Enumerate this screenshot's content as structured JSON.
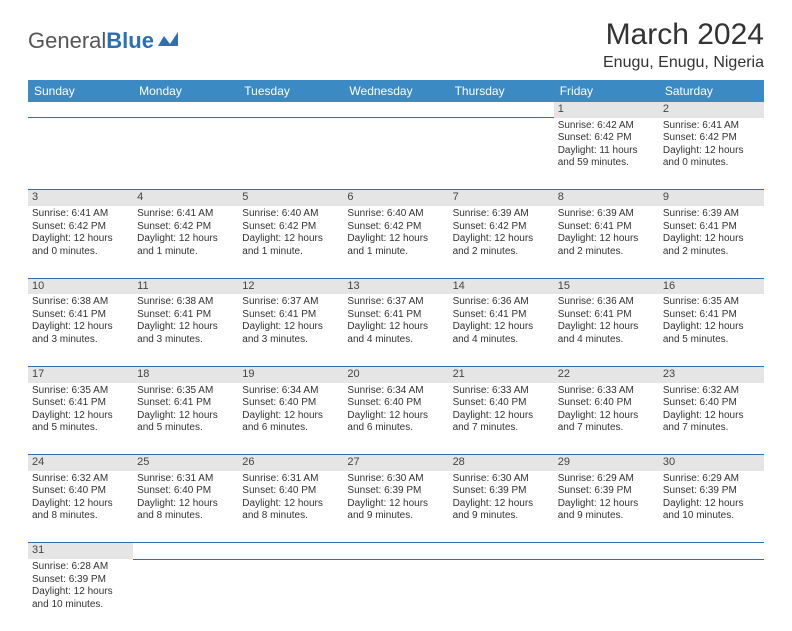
{
  "logo": {
    "general": "General",
    "blue": "Blue"
  },
  "title": "March 2024",
  "location": "Enugu, Enugu, Nigeria",
  "colors": {
    "header_bg": "#3b8ac4",
    "header_fg": "#ffffff",
    "daynum_bg": "#e5e5e5",
    "border": "#2b6fb5",
    "text": "#333333"
  },
  "weekdays": [
    "Sunday",
    "Monday",
    "Tuesday",
    "Wednesday",
    "Thursday",
    "Friday",
    "Saturday"
  ],
  "weeks": [
    {
      "nums": [
        "",
        "",
        "",
        "",
        "",
        "1",
        "2"
      ],
      "cells": [
        "",
        "",
        "",
        "",
        "",
        "Sunrise: 6:42 AM\nSunset: 6:42 PM\nDaylight: 11 hours\nand 59 minutes.",
        "Sunrise: 6:41 AM\nSunset: 6:42 PM\nDaylight: 12 hours\nand 0 minutes."
      ]
    },
    {
      "nums": [
        "3",
        "4",
        "5",
        "6",
        "7",
        "8",
        "9"
      ],
      "cells": [
        "Sunrise: 6:41 AM\nSunset: 6:42 PM\nDaylight: 12 hours\nand 0 minutes.",
        "Sunrise: 6:41 AM\nSunset: 6:42 PM\nDaylight: 12 hours\nand 1 minute.",
        "Sunrise: 6:40 AM\nSunset: 6:42 PM\nDaylight: 12 hours\nand 1 minute.",
        "Sunrise: 6:40 AM\nSunset: 6:42 PM\nDaylight: 12 hours\nand 1 minute.",
        "Sunrise: 6:39 AM\nSunset: 6:42 PM\nDaylight: 12 hours\nand 2 minutes.",
        "Sunrise: 6:39 AM\nSunset: 6:41 PM\nDaylight: 12 hours\nand 2 minutes.",
        "Sunrise: 6:39 AM\nSunset: 6:41 PM\nDaylight: 12 hours\nand 2 minutes."
      ]
    },
    {
      "nums": [
        "10",
        "11",
        "12",
        "13",
        "14",
        "15",
        "16"
      ],
      "cells": [
        "Sunrise: 6:38 AM\nSunset: 6:41 PM\nDaylight: 12 hours\nand 3 minutes.",
        "Sunrise: 6:38 AM\nSunset: 6:41 PM\nDaylight: 12 hours\nand 3 minutes.",
        "Sunrise: 6:37 AM\nSunset: 6:41 PM\nDaylight: 12 hours\nand 3 minutes.",
        "Sunrise: 6:37 AM\nSunset: 6:41 PM\nDaylight: 12 hours\nand 4 minutes.",
        "Sunrise: 6:36 AM\nSunset: 6:41 PM\nDaylight: 12 hours\nand 4 minutes.",
        "Sunrise: 6:36 AM\nSunset: 6:41 PM\nDaylight: 12 hours\nand 4 minutes.",
        "Sunrise: 6:35 AM\nSunset: 6:41 PM\nDaylight: 12 hours\nand 5 minutes."
      ]
    },
    {
      "nums": [
        "17",
        "18",
        "19",
        "20",
        "21",
        "22",
        "23"
      ],
      "cells": [
        "Sunrise: 6:35 AM\nSunset: 6:41 PM\nDaylight: 12 hours\nand 5 minutes.",
        "Sunrise: 6:35 AM\nSunset: 6:41 PM\nDaylight: 12 hours\nand 5 minutes.",
        "Sunrise: 6:34 AM\nSunset: 6:40 PM\nDaylight: 12 hours\nand 6 minutes.",
        "Sunrise: 6:34 AM\nSunset: 6:40 PM\nDaylight: 12 hours\nand 6 minutes.",
        "Sunrise: 6:33 AM\nSunset: 6:40 PM\nDaylight: 12 hours\nand 7 minutes.",
        "Sunrise: 6:33 AM\nSunset: 6:40 PM\nDaylight: 12 hours\nand 7 minutes.",
        "Sunrise: 6:32 AM\nSunset: 6:40 PM\nDaylight: 12 hours\nand 7 minutes."
      ]
    },
    {
      "nums": [
        "24",
        "25",
        "26",
        "27",
        "28",
        "29",
        "30"
      ],
      "cells": [
        "Sunrise: 6:32 AM\nSunset: 6:40 PM\nDaylight: 12 hours\nand 8 minutes.",
        "Sunrise: 6:31 AM\nSunset: 6:40 PM\nDaylight: 12 hours\nand 8 minutes.",
        "Sunrise: 6:31 AM\nSunset: 6:40 PM\nDaylight: 12 hours\nand 8 minutes.",
        "Sunrise: 6:30 AM\nSunset: 6:39 PM\nDaylight: 12 hours\nand 9 minutes.",
        "Sunrise: 6:30 AM\nSunset: 6:39 PM\nDaylight: 12 hours\nand 9 minutes.",
        "Sunrise: 6:29 AM\nSunset: 6:39 PM\nDaylight: 12 hours\nand 9 minutes.",
        "Sunrise: 6:29 AM\nSunset: 6:39 PM\nDaylight: 12 hours\nand 10 minutes."
      ]
    },
    {
      "nums": [
        "31",
        "",
        "",
        "",
        "",
        "",
        ""
      ],
      "cells": [
        "Sunrise: 6:28 AM\nSunset: 6:39 PM\nDaylight: 12 hours\nand 10 minutes.",
        "",
        "",
        "",
        "",
        "",
        ""
      ]
    }
  ]
}
